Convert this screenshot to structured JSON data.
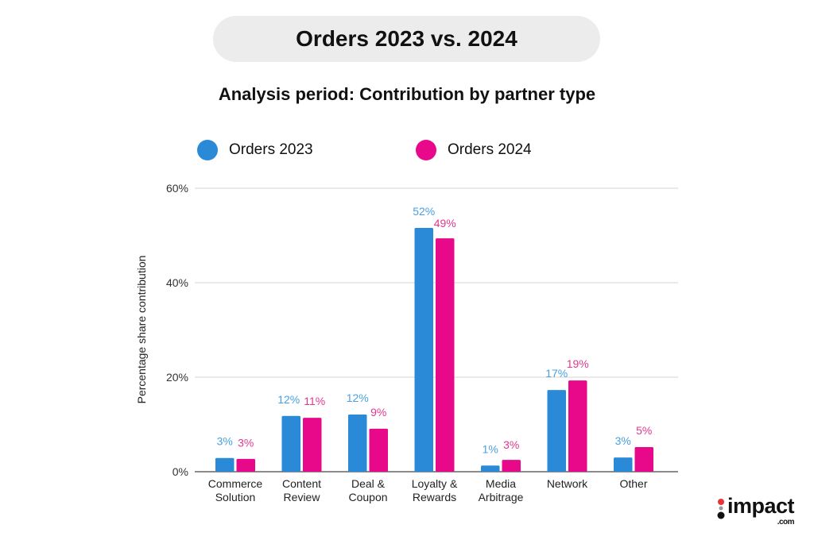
{
  "header": {
    "title": "Orders 2023 vs. 2024"
  },
  "chart_data": {
    "type": "bar",
    "title": "Analysis period: Contribution by partner type",
    "ylabel": "Percentage share contribution",
    "xlabel": "",
    "ylim": [
      0,
      60
    ],
    "yticks": [
      "0%",
      "20%",
      "40%",
      "60%"
    ],
    "grid": true,
    "legend_placement": "top-left",
    "categories": [
      [
        "Commerce",
        "Solution"
      ],
      [
        "Content",
        "Review"
      ],
      [
        "Deal &",
        "Coupon"
      ],
      [
        "Loyalty &",
        "Rewards"
      ],
      [
        "Media",
        "Arbitrage"
      ],
      [
        "Network"
      ],
      [
        "Other"
      ]
    ],
    "series": [
      {
        "name": "Orders 2023",
        "color": "#2a8ad8",
        "label_color": "#4a9fe0",
        "values": [
          2.9,
          11.8,
          12.1,
          51.6,
          1.3,
          17.3,
          3.0
        ],
        "labels": [
          "3%",
          "12%",
          "12%",
          "52%",
          "1%",
          "17%",
          "3%"
        ]
      },
      {
        "name": "Orders 2024",
        "color": "#e8098b",
        "label_color": "#e0388f",
        "values": [
          2.7,
          11.4,
          9.1,
          49.4,
          2.5,
          19.3,
          5.2
        ],
        "labels": [
          "3%",
          "11%",
          "9%",
          "49%",
          "3%",
          "19%",
          "5%"
        ]
      }
    ]
  },
  "logo": {
    "text": "impact",
    "suffix": ".com"
  }
}
